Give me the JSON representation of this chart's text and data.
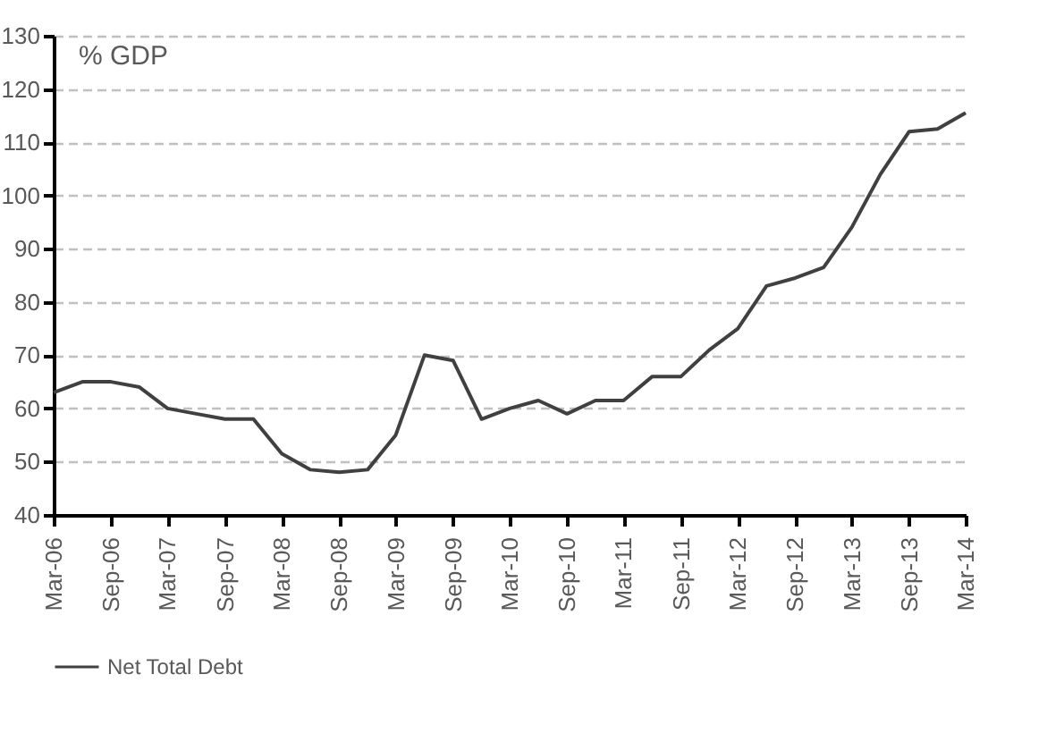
{
  "chart_data": {
    "type": "line",
    "ylabel": "% GDP",
    "x": [
      "2006-03",
      "2006-06",
      "2006-09",
      "2006-12",
      "2007-03",
      "2007-06",
      "2007-09",
      "2007-12",
      "2008-03",
      "2008-06",
      "2008-09",
      "2008-12",
      "2009-03",
      "2009-06",
      "2009-09",
      "2009-12",
      "2010-03",
      "2010-06",
      "2010-09",
      "2010-12",
      "2011-03",
      "2011-06",
      "2011-09",
      "2011-12",
      "2012-03",
      "2012-06",
      "2012-09",
      "2012-12",
      "2013-03",
      "2013-06",
      "2013-09",
      "2013-12",
      "2014-03"
    ],
    "series": [
      {
        "name": "Net Total Debt",
        "color": "#404040",
        "values": [
          63,
          65,
          65,
          64,
          60,
          59,
          58,
          58,
          51.5,
          48.5,
          48,
          48.5,
          55,
          70,
          69,
          58,
          60,
          61.5,
          59,
          61.5,
          61.5,
          66,
          66,
          71,
          75,
          83,
          84.5,
          86.5,
          94,
          104,
          112,
          112.5,
          115.5
        ]
      }
    ],
    "xlim": [
      "2006-03",
      "2014-03"
    ],
    "xticks": [
      {
        "value": "2006-03",
        "label": "Mar-06"
      },
      {
        "value": "2006-09",
        "label": "Sep-06"
      },
      {
        "value": "2007-03",
        "label": "Mar-07"
      },
      {
        "value": "2007-09",
        "label": "Sep-07"
      },
      {
        "value": "2008-03",
        "label": "Mar-08"
      },
      {
        "value": "2008-09",
        "label": "Sep-08"
      },
      {
        "value": "2009-03",
        "label": "Mar-09"
      },
      {
        "value": "2009-09",
        "label": "Sep-09"
      },
      {
        "value": "2010-03",
        "label": "Mar-10"
      },
      {
        "value": "2010-09",
        "label": "Sep-10"
      },
      {
        "value": "2011-03",
        "label": "Mar-11"
      },
      {
        "value": "2011-09",
        "label": "Sep-11"
      },
      {
        "value": "2012-03",
        "label": "Mar-12"
      },
      {
        "value": "2012-09",
        "label": "Sep-12"
      },
      {
        "value": "2013-03",
        "label": "Mar-13"
      },
      {
        "value": "2013-09",
        "label": "Sep-13"
      },
      {
        "value": "2014-03",
        "label": "Mar-14"
      }
    ],
    "ylim": [
      40,
      130
    ],
    "yticks": [
      40,
      50,
      60,
      70,
      80,
      90,
      100,
      110,
      120,
      130
    ],
    "grid": "y",
    "legend": "bottom",
    "marker": "none",
    "line_style": "solid"
  }
}
